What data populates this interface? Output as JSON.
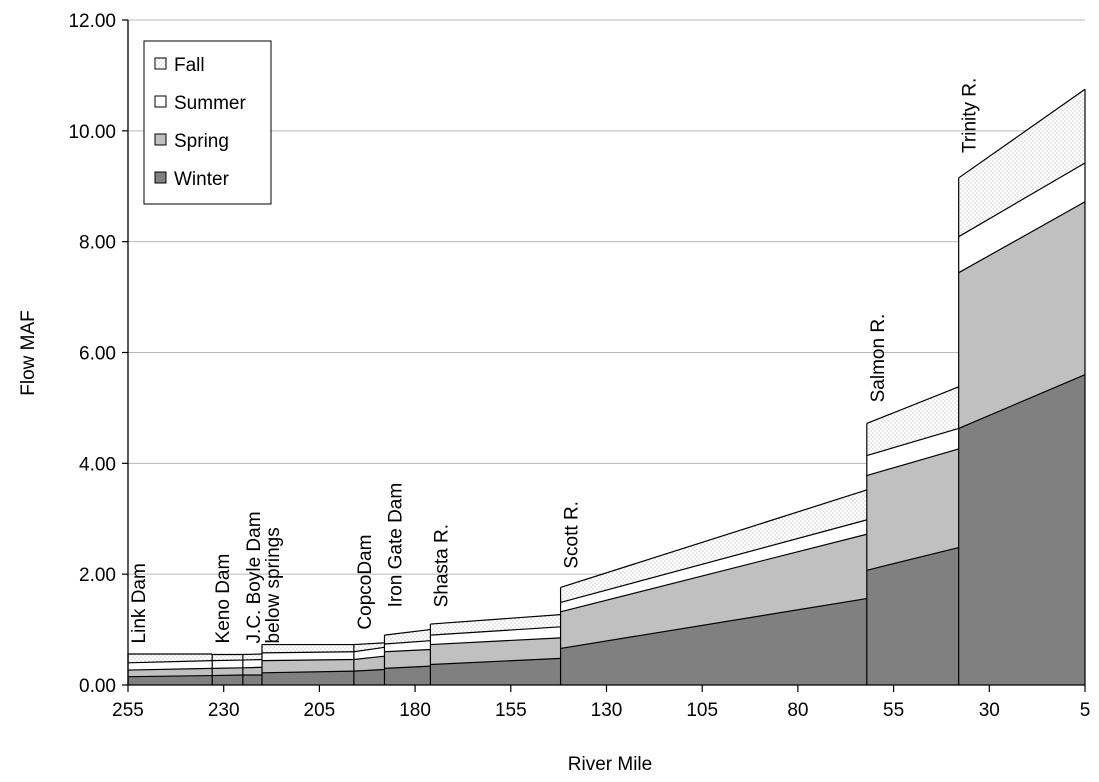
{
  "chart_data": {
    "type": "area",
    "stacked": true,
    "xlabel": "River Mile",
    "ylabel": "Flow MAF",
    "xlim": [
      255,
      5
    ],
    "x_reversed": true,
    "ylim": [
      0,
      12
    ],
    "xticks": [
      255,
      230,
      205,
      180,
      155,
      130,
      105,
      80,
      55,
      30,
      5
    ],
    "xtick_labels": [
      "255",
      "230",
      "205",
      "180",
      "155",
      "130",
      "105",
      "80",
      "55",
      "30",
      "5"
    ],
    "yticks": [
      0,
      2,
      4,
      6,
      8,
      10,
      12
    ],
    "ytick_labels": [
      "0.00",
      "2.00",
      "4.00",
      "6.00",
      "8.00",
      "10.00",
      "12.00"
    ],
    "grid": "horizontal",
    "legend_position": "top-left",
    "legend": [
      "Fall",
      "Summer",
      "Spring",
      "Winter"
    ],
    "boundaries": [
      255,
      233,
      225,
      220,
      196,
      188,
      176,
      142,
      62,
      38,
      5
    ],
    "segments": [
      {
        "x": [
          255,
          233
        ],
        "winter": [
          0.15,
          0.17
        ],
        "spring": [
          0.27,
          0.3
        ],
        "summer": [
          0.4,
          0.44
        ],
        "fall": [
          0.56,
          0.56
        ]
      },
      {
        "x": [
          233,
          225
        ],
        "winter": [
          0.17,
          0.18
        ],
        "spring": [
          0.3,
          0.31
        ],
        "summer": [
          0.44,
          0.45
        ],
        "fall": [
          0.55,
          0.55
        ]
      },
      {
        "x": [
          225,
          220
        ],
        "winter": [
          0.18,
          0.18
        ],
        "spring": [
          0.31,
          0.32
        ],
        "summer": [
          0.45,
          0.46
        ],
        "fall": [
          0.55,
          0.56
        ]
      },
      {
        "x": [
          220,
          196
        ],
        "winter": [
          0.22,
          0.25
        ],
        "spring": [
          0.44,
          0.46
        ],
        "summer": [
          0.58,
          0.6
        ],
        "fall": [
          0.73,
          0.73
        ]
      },
      {
        "x": [
          196,
          188
        ],
        "winter": [
          0.25,
          0.28
        ],
        "spring": [
          0.46,
          0.52
        ],
        "summer": [
          0.6,
          0.68
        ],
        "fall": [
          0.73,
          0.76
        ]
      },
      {
        "x": [
          188,
          176
        ],
        "winter": [
          0.3,
          0.34
        ],
        "spring": [
          0.6,
          0.64
        ],
        "summer": [
          0.74,
          0.8
        ],
        "fall": [
          0.9,
          1.0
        ]
      },
      {
        "x": [
          176,
          142
        ],
        "winter": [
          0.37,
          0.48
        ],
        "spring": [
          0.73,
          0.85
        ],
        "summer": [
          0.9,
          1.05
        ],
        "fall": [
          1.1,
          1.27
        ]
      },
      {
        "x": [
          142,
          62
        ],
        "winter": [
          0.66,
          1.56
        ],
        "spring": [
          1.32,
          2.72
        ],
        "summer": [
          1.49,
          2.98
        ],
        "fall": [
          1.76,
          3.52
        ]
      },
      {
        "x": [
          62,
          38
        ],
        "winter": [
          2.07,
          2.48
        ],
        "spring": [
          3.78,
          4.26
        ],
        "summer": [
          4.14,
          4.63
        ],
        "fall": [
          4.72,
          5.38
        ]
      },
      {
        "x": [
          38,
          5
        ],
        "winter": [
          4.63,
          5.6
        ],
        "spring": [
          7.44,
          8.72
        ],
        "summer": [
          8.09,
          9.42
        ],
        "fall": [
          9.15,
          10.75
        ]
      }
    ],
    "annotations": [
      {
        "text": "Link Dam",
        "x": 255,
        "y": 0.75
      },
      {
        "text": "Keno Dam",
        "x": 233,
        "y": 0.75
      },
      {
        "text": "J.C. Boyle Dam",
        "x": 225,
        "y": 0.75
      },
      {
        "text": "below springs",
        "x": 220,
        "y": 0.75
      },
      {
        "text": "CopcoDam",
        "x": 196,
        "y": 1.0
      },
      {
        "text": "Iron Gate Dam",
        "x": 188,
        "y": 1.4
      },
      {
        "text": "Shasta R.",
        "x": 176,
        "y": 1.4
      },
      {
        "text": "Scott R.",
        "x": 142,
        "y": 2.1
      },
      {
        "text": "Salmon R.",
        "x": 62,
        "y": 5.1
      },
      {
        "text": "Trinity R.",
        "x": 38,
        "y": 9.6
      }
    ]
  },
  "colors": {
    "winter": "#808080",
    "spring": "#c0c0c0",
    "summer": "#ffffff",
    "fall_bg": "#ffffff",
    "fall_dots": "#a0a0a0",
    "grid": "#b8b8b8",
    "outline": "#000000"
  }
}
